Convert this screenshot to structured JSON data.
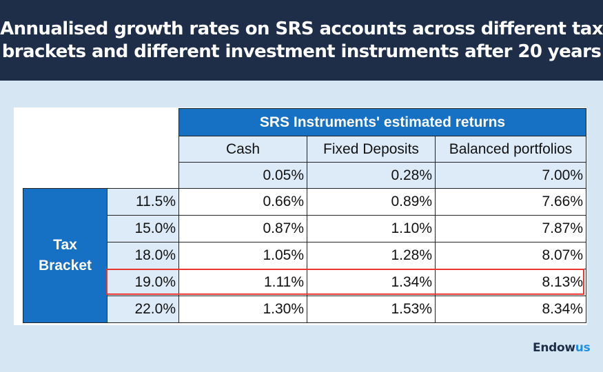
{
  "title": "Annualised  growth rates on SRS accounts across different tax\nbrackets and different investment instruments after 20 years",
  "chart_data": {
    "type": "table",
    "title": "Annualised  growth rates on SRS accounts across different tax brackets and different investment instruments after 20 years",
    "group_header": "SRS Instruments' estimated returns",
    "row_group_label": "Tax Bracket",
    "columns": [
      "Cash",
      "Fixed Deposits",
      "Balanced portfolios"
    ],
    "base_returns": [
      "0.05%",
      "0.28%",
      "7.00%"
    ],
    "rows": [
      {
        "bracket": "11.5%",
        "values": [
          "0.66%",
          "0.89%",
          "7.66%"
        ]
      },
      {
        "bracket": "15.0%",
        "values": [
          "0.87%",
          "1.10%",
          "7.87%"
        ]
      },
      {
        "bracket": "18.0%",
        "values": [
          "1.05%",
          "1.28%",
          "8.07%"
        ]
      },
      {
        "bracket": "19.0%",
        "values": [
          "1.11%",
          "1.34%",
          "8.13%"
        ]
      },
      {
        "bracket": "22.0%",
        "values": [
          "1.30%",
          "1.53%",
          "8.34%"
        ]
      }
    ],
    "highlighted_bracket": "19.0%"
  },
  "logo": {
    "text_main": "Endow",
    "text_accent": "us"
  },
  "colors": {
    "header_bg": "#1e2d48",
    "accent_blue": "#1670c3",
    "light_blue": "#ddebf9",
    "highlight_border": "#e8362f",
    "page_bg": "#d6e6f2"
  }
}
